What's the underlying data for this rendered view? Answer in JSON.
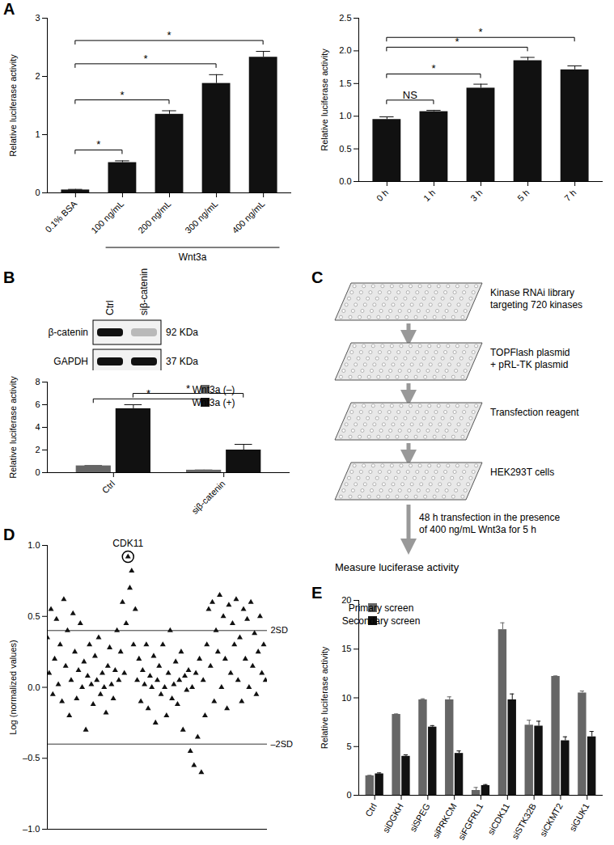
{
  "chart_data": [
    {
      "panel": "A",
      "type": "bar",
      "categories": [
        "0.1% BSA",
        "100 ng/mL",
        "200 ng/mL",
        "300 ng/mL",
        "400 ng/mL"
      ],
      "values": [
        0.05,
        0.52,
        1.35,
        1.88,
        2.33
      ],
      "errors": [
        0.01,
        0.03,
        0.06,
        0.15,
        0.1
      ],
      "color": "#111111",
      "ylabel": "Relative luciferase activity",
      "ylim": [
        0,
        3
      ],
      "yticks": [
        0,
        1,
        2,
        3
      ],
      "group_label": {
        "text": "Wnt3a",
        "categories": [
          "100 ng/mL",
          "200 ng/mL",
          "300 ng/mL",
          "400 ng/mL"
        ]
      },
      "comparisons": [
        {
          "from": "0.1% BSA",
          "to": "100 ng/mL",
          "label": "*"
        },
        {
          "from": "0.1% BSA",
          "to": "200 ng/mL",
          "label": "*"
        },
        {
          "from": "0.1% BSA",
          "to": "300 ng/mL",
          "label": "*"
        },
        {
          "from": "0.1% BSA",
          "to": "400 ng/mL",
          "label": "*"
        }
      ]
    },
    {
      "type": "bar",
      "categories": [
        "0 h",
        "1 h",
        "3 h",
        "5 h",
        "7 h"
      ],
      "values": [
        0.95,
        1.07,
        1.43,
        1.85,
        1.71
      ],
      "errors": [
        0.04,
        0.02,
        0.06,
        0.05,
        0.06
      ],
      "color": "#111111",
      "ylabel": "Relative luciferase activity",
      "ylim": [
        0,
        2.5
      ],
      "yticks": [
        {
          "value": 0,
          "label": "0.0"
        },
        0.5,
        {
          "value": 1,
          "label": "1.0"
        },
        1.5,
        {
          "value": 2,
          "label": "2.0"
        },
        2.5
      ],
      "comparisons": [
        {
          "from": "0 h",
          "to": "1 h",
          "label": "NS"
        },
        {
          "from": "0 h",
          "to": "3 h",
          "label": "*"
        },
        {
          "from": "0 h",
          "to": "5 h",
          "label": "*"
        },
        {
          "from": "0 h",
          "to": "7 h",
          "label": "*"
        }
      ]
    },
    {
      "type": "bar",
      "categories": [
        "Ctrl",
        "siβ-catenin"
      ],
      "series": [
        {
          "name": "Wnt3a (–)",
          "color": "#666666",
          "values": [
            0.6,
            0.22
          ],
          "errors": [
            0.04,
            0.02
          ]
        },
        {
          "name": "Wnt3a (+)",
          "color": "#111111",
          "values": [
            5.65,
            2.0
          ],
          "errors": [
            0.35,
            0.5
          ]
        }
      ],
      "ylabel": "Relative luciferase activity",
      "ylim": [
        0,
        8
      ],
      "yticks": [
        0,
        2,
        4,
        6,
        8
      ],
      "legend": "top-right",
      "comparisons": [
        {
          "from": {
            "category": "Ctrl",
            "series": "Wnt3a (–)"
          },
          "to": {
            "category": "siβ-catenin",
            "series": "Wnt3a (–)"
          },
          "label": "*"
        },
        {
          "from": {
            "category": "Ctrl",
            "series": "Wnt3a (+)"
          },
          "to": {
            "category": "siβ-catenin",
            "series": "Wnt3a (+)"
          },
          "label": "*"
        }
      ]
    },
    {
      "panel": "D",
      "type": "scatter",
      "ylabel": "Log (normalized values)",
      "marker": "triangle",
      "color": "#111111",
      "tick_labels": "y",
      "xlim": [
        0,
        720
      ],
      "ylim": [
        -1,
        1
      ],
      "yticks": [
        {
          "value": -1,
          "label": "–1.0"
        },
        {
          "value": -0.5,
          "label": "–0.5"
        },
        {
          "value": 0,
          "label": "0.0"
        },
        0.5,
        {
          "value": 1,
          "label": "1.0"
        }
      ],
      "x": [
        0,
        6,
        12,
        18,
        24,
        30,
        36,
        42,
        48,
        54,
        60,
        66,
        72,
        78,
        84,
        90,
        96,
        102,
        108,
        114,
        120,
        126,
        132,
        138,
        144,
        150,
        156,
        162,
        168,
        174,
        180,
        186,
        192,
        198,
        204,
        210,
        216,
        222,
        228,
        234,
        240,
        246,
        252,
        258,
        264,
        270,
        276,
        282,
        288,
        294,
        300,
        306,
        312,
        318,
        324,
        330,
        336,
        342,
        348,
        354,
        360,
        366,
        372,
        378,
        384,
        390,
        396,
        402,
        408,
        414,
        420,
        426,
        432,
        438,
        444,
        450,
        456,
        462,
        468,
        474,
        480,
        486,
        492,
        498,
        504,
        510,
        516,
        522,
        528,
        534,
        540,
        546,
        552,
        558,
        564,
        570,
        576,
        582,
        588,
        594,
        600,
        606,
        612,
        618,
        624,
        630,
        636,
        642,
        648,
        654,
        660,
        666,
        672,
        678,
        684,
        690,
        696,
        702,
        708,
        714
      ],
      "values": [
        0.35,
        0.1,
        0.55,
        -0.05,
        0.2,
        0.48,
        0.02,
        0.3,
        -0.1,
        0.62,
        0.15,
        0.4,
        -0.2,
        0.05,
        0.52,
        0.25,
        -0.08,
        0.12,
        0.45,
        0.0,
        0.18,
        -0.3,
        0.08,
        0.3,
        0.02,
        -0.12,
        0.22,
        0.05,
        0.35,
        -0.05,
        0.1,
        0.0,
        -0.18,
        0.15,
        0.28,
        0.02,
        -0.08,
        0.12,
        0.4,
        0.05,
        0.25,
        0.6,
        0.1,
        0.45,
        0.92,
        0.7,
        0.82,
        0.3,
        0.55,
        0.05,
        0.2,
        -0.1,
        0.12,
        0.02,
        0.3,
        -0.15,
        0.08,
        0.0,
        0.22,
        -0.25,
        0.05,
        0.15,
        -0.05,
        0.3,
        0.0,
        -0.2,
        0.1,
        0.4,
        -0.08,
        0.02,
        0.18,
        -0.12,
        0.05,
        0.25,
        -0.3,
        0.08,
        -0.02,
        0.12,
        -0.45,
        0.0,
        -0.55,
        0.1,
        -0.35,
        0.2,
        -0.6,
        0.05,
        -0.2,
        0.3,
        0.55,
        0.15,
        0.6,
        -0.1,
        0.4,
        0.25,
        0.65,
        0.0,
        0.5,
        0.2,
        -0.15,
        0.58,
        0.1,
        0.45,
        0.3,
        0.62,
        0.05,
        0.35,
        -0.1,
        0.55,
        0.2,
        0.48,
        0.0,
        0.6,
        0.15,
        0.38,
        -0.05,
        0.25,
        0.5,
        0.1,
        0.3,
        0.05
      ],
      "reference_lines": [
        {
          "y": 0.4,
          "label": "2SD"
        },
        {
          "y": -0.4,
          "label": "–2SD"
        }
      ],
      "annotations": [
        {
          "text": "CDK11",
          "x": 264,
          "y": 0.92
        }
      ]
    },
    {
      "panel": "E",
      "type": "bar",
      "categories": [
        "Ctrl",
        "siDGKH",
        "siSPEG",
        "siPRKCM",
        "siFGFRL1",
        "siCDK11",
        "siSTK32B",
        "siCKMT2",
        "siGUK1"
      ],
      "series": [
        {
          "name": "Primary screen",
          "color": "#666666",
          "values": [
            2.0,
            8.3,
            9.8,
            9.8,
            0.5,
            17.0,
            7.2,
            12.2,
            10.5
          ],
          "errors": [
            0.05,
            0.05,
            0.1,
            0.3,
            0.3,
            0.7,
            0.5,
            0.05,
            0.2
          ]
        },
        {
          "name": "Secondary screen",
          "color": "#111111",
          "values": [
            2.2,
            4.0,
            7.0,
            4.3,
            1.0,
            9.8,
            7.1,
            5.6,
            6.0
          ],
          "errors": [
            0.1,
            0.15,
            0.15,
            0.25,
            0.1,
            0.6,
            0.5,
            0.4,
            0.55
          ]
        }
      ],
      "ylabel": "Relative luciferase activity",
      "ylim": [
        0,
        20
      ],
      "yticks": [
        0,
        5,
        10,
        15,
        20
      ],
      "legend": "top-left"
    }
  ],
  "blot": {
    "panel": "B",
    "lanes": [
      "Ctrl",
      "siβ-catenin"
    ],
    "rows": [
      {
        "label": "β-catenin",
        "size": "92 KDa",
        "band_intensity": [
          1,
          0.25
        ]
      },
      {
        "label": "GAPDH",
        "size": "37 KDa",
        "band_intensity": [
          1,
          1
        ]
      }
    ]
  },
  "flowchart": {
    "panel": "C",
    "steps": [
      {
        "text": [
          "Kinase RNAi library",
          "targeting 720 kinases"
        ]
      },
      {
        "text": [
          "TOPFlash plasmid",
          "+ pRL-TK plasmid"
        ]
      },
      {
        "text": [
          "Transfection reagent"
        ]
      },
      {
        "text": [
          "HEK293T cells"
        ]
      }
    ],
    "final_arrow_label": [
      "48 h transfection in the presence",
      "of 400 ng/mL Wnt3a for 5 h"
    ],
    "result": "Measure luciferase activity"
  }
}
